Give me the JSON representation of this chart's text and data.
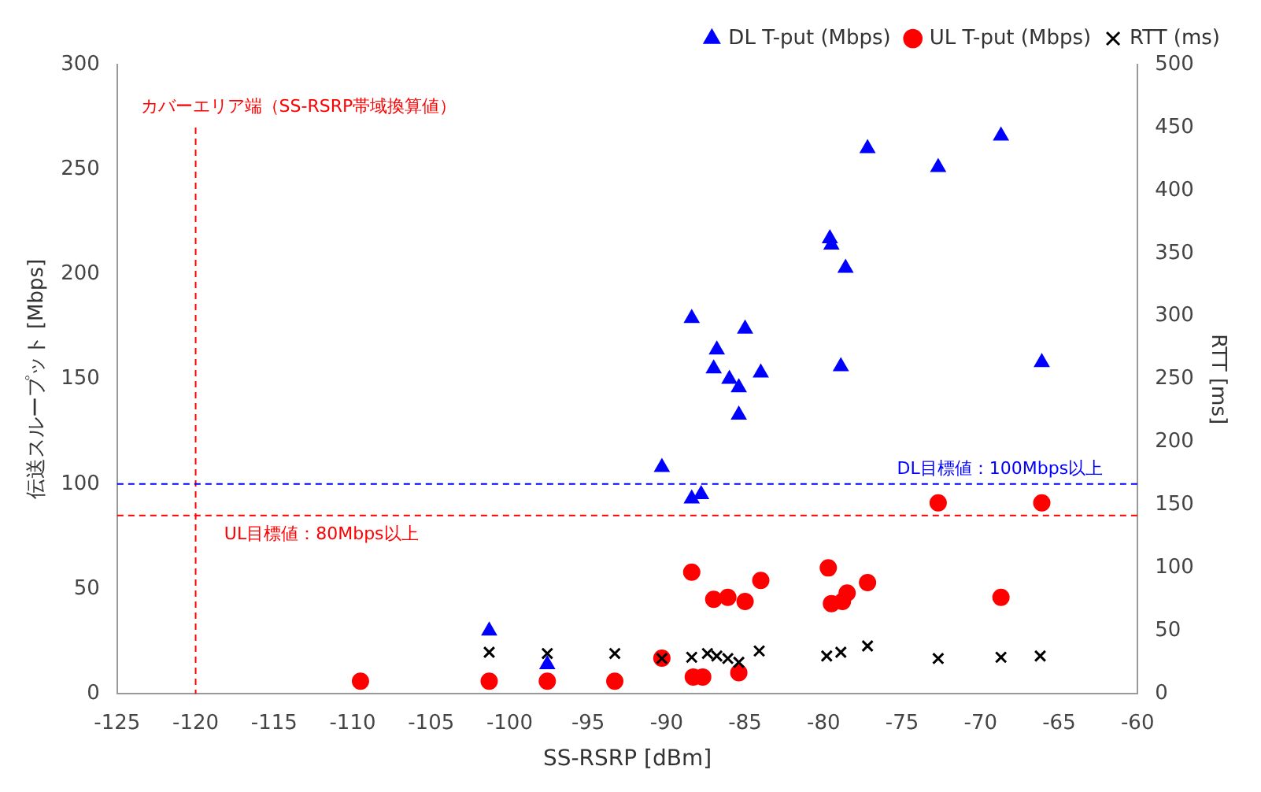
{
  "chart_data": {
    "type": "scatter",
    "xlabel": "SS-RSRP [dBm]",
    "ylabel": "伝送スループット [Mbps]",
    "y2label": "RTT [ms]",
    "xlim": [
      -125,
      -60
    ],
    "xticks": [
      -125,
      -120,
      -115,
      -110,
      -105,
      -100,
      -95,
      -90,
      -85,
      -80,
      -75,
      -70,
      -65,
      -60
    ],
    "ylim": [
      0,
      300
    ],
    "yticks": [
      0,
      50,
      100,
      150,
      200,
      250,
      300
    ],
    "y2lim": [
      0,
      500
    ],
    "y2ticks": [
      0,
      50,
      100,
      150,
      200,
      250,
      300,
      350,
      400,
      450,
      500
    ],
    "grid": false,
    "legend": "top",
    "series": [
      {
        "name": "DL T-put (Mbps)",
        "color": "#0000ff",
        "marker": "triangle",
        "x": [
          -77.2,
          -72.7,
          -68.7,
          -79.6,
          -79.5,
          -78.6,
          -88.4,
          -85.0,
          -86.8,
          -87.0,
          -86.0,
          -85.4,
          -84.0,
          -78.9,
          -66.1,
          -85.4,
          -90.3,
          -88.4,
          -87.8,
          -101.3,
          -97.6
        ],
        "values": [
          260,
          251,
          266,
          217,
          214,
          203,
          179,
          174,
          164,
          155,
          150,
          146,
          153,
          156,
          158,
          133,
          108,
          93,
          95,
          30,
          14
        ]
      },
      {
        "name": "UL T-put (Mbps)",
        "color": "#ff0000",
        "marker": "circle",
        "x": [
          -72.7,
          -66.1,
          -88.4,
          -87.0,
          -86.1,
          -85.0,
          -84.0,
          -79.7,
          -79.5,
          -78.8,
          -78.5,
          -77.2,
          -68.7,
          -109.5,
          -101.3,
          -97.6,
          -93.3,
          -90.3,
          -88.3,
          -87.7,
          -85.4
        ],
        "values": [
          91,
          91,
          58,
          45,
          46,
          44,
          54,
          60,
          43,
          44,
          48,
          53,
          46,
          6,
          6,
          6,
          6,
          17,
          8,
          8,
          10
        ]
      },
      {
        "name": "RTT (ms)",
        "color": "#000000",
        "marker": "cross",
        "axis": "y2",
        "x": [
          -101.3,
          -97.6,
          -93.3,
          -90.3,
          -88.4,
          -87.4,
          -86.8,
          -86.1,
          -85.4,
          -84.1,
          -79.8,
          -78.9,
          -77.2,
          -72.7,
          -68.7,
          -66.2
        ],
        "values": [
          33,
          32,
          32,
          28,
          29,
          32,
          30,
          28,
          25,
          34,
          30,
          33,
          38,
          28,
          29,
          30
        ]
      }
    ],
    "ref_lines": [
      {
        "axis": "x",
        "value": -120,
        "label": "カバーエリア端（SS-RSRP帯域換算値）",
        "color": "#ff0000",
        "line_style": "dashed"
      },
      {
        "axis": "y",
        "value": 100,
        "label": "DL目標値：100Mbps以上",
        "color": "#0000ff",
        "line_style": "dashed"
      },
      {
        "axis": "y",
        "value": 85,
        "label": "UL目標値：80Mbps以上",
        "color": "#ff0000",
        "line_style": "dashed"
      }
    ]
  }
}
